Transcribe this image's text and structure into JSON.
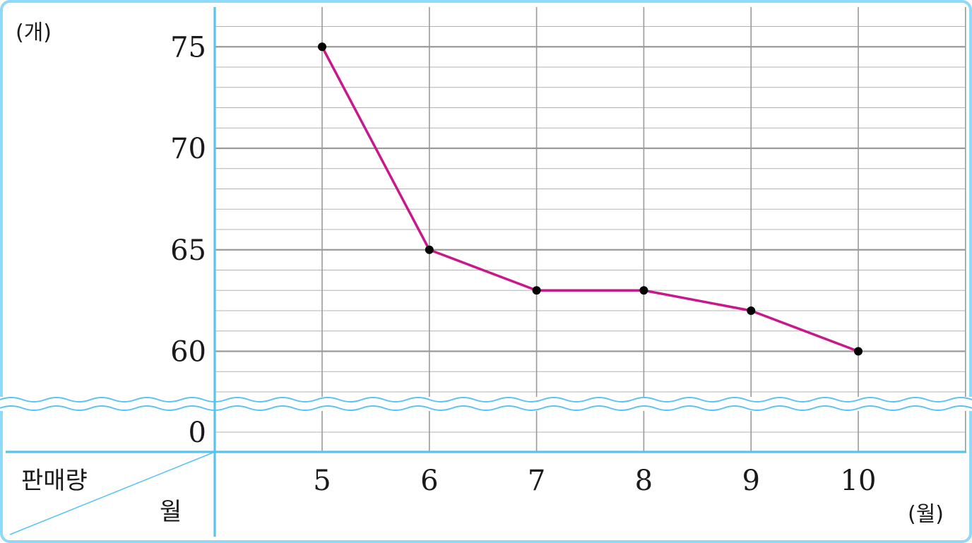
{
  "chart_data": {
    "type": "line",
    "x_unit": "(월)",
    "y_unit": "(개)",
    "corner_row_label": "판매량",
    "corner_col_label": "월",
    "x": [
      "5",
      "6",
      "7",
      "8",
      "9",
      "10"
    ],
    "series": [
      {
        "values": [
          75,
          65,
          63,
          63,
          62,
          60
        ]
      }
    ],
    "y_ticks": [
      "75",
      "70",
      "65",
      "60",
      "0"
    ],
    "ylim": [
      58,
      77
    ],
    "y_break": true,
    "y_break_zero": "0",
    "grid": true,
    "colors": {
      "line": "#c8188c",
      "point": "#000000",
      "axis": "#59c3f0",
      "grid_major": "#9a9a9a",
      "grid_minor": "#b3b3b3",
      "frame": "#8fd8f7"
    }
  }
}
